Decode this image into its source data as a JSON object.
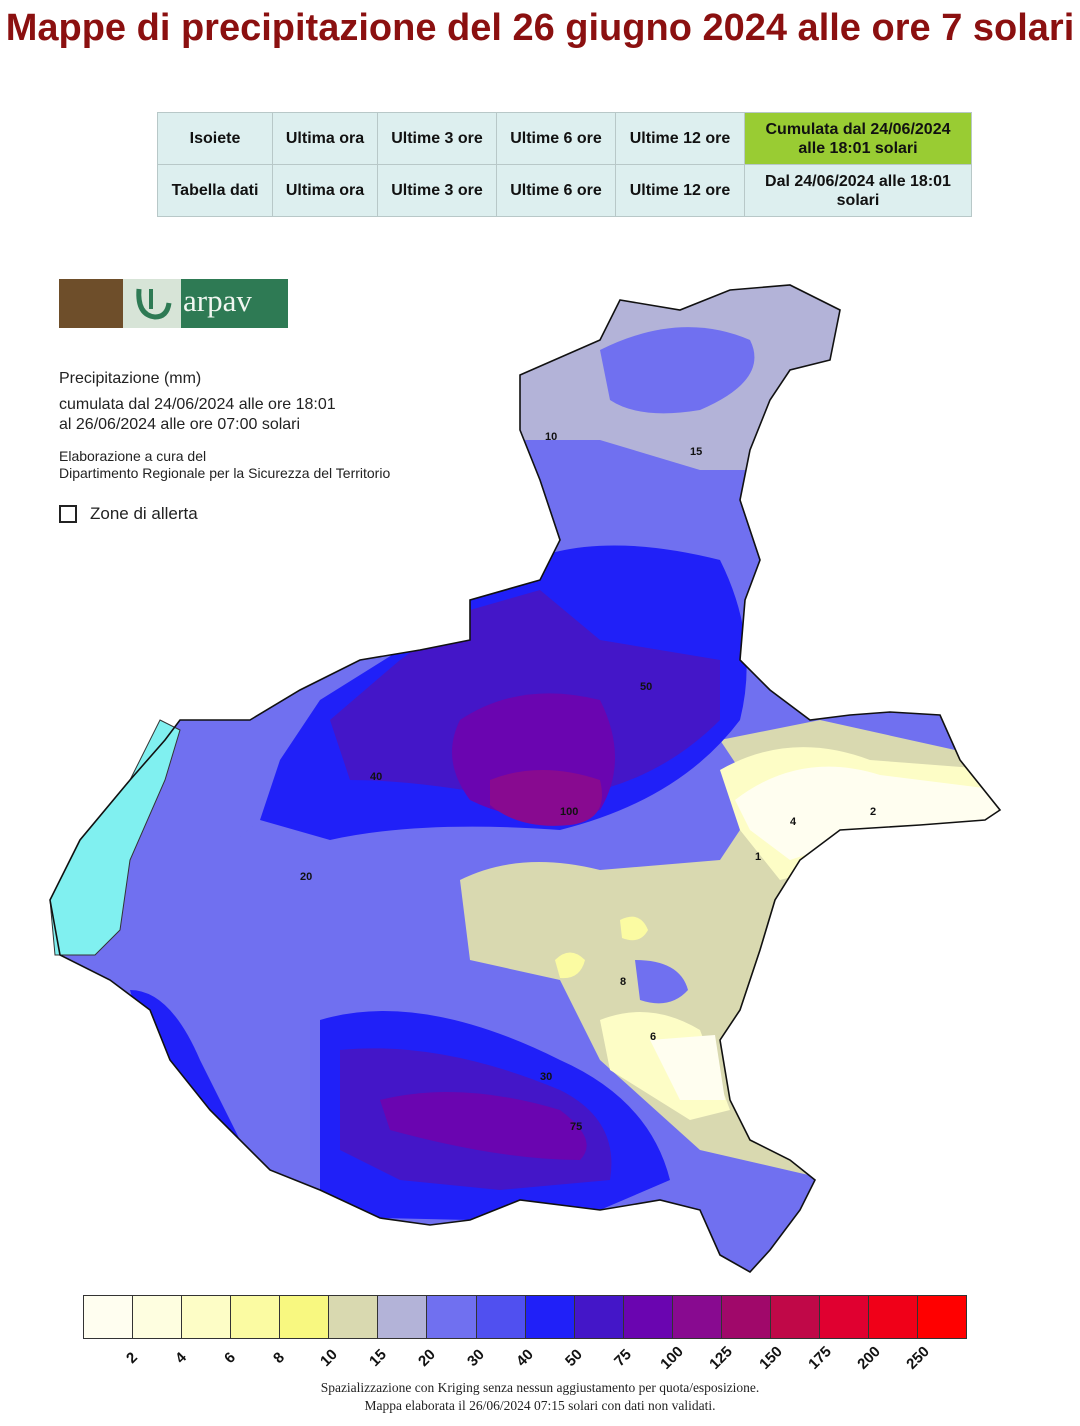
{
  "title": "Mappe di precipitazione del 26 giugno 2024 alle ore 7 solari",
  "nav": {
    "rows": [
      {
        "header": "Isoiete",
        "cells": [
          {
            "label": "Ultima ora"
          },
          {
            "label": "Ultime 3 ore"
          },
          {
            "label": "Ultime 6 ore"
          },
          {
            "label": "Ultime 12 ore"
          },
          {
            "label": "Cumulata dal 24/06/2024 alle 18:01 solari",
            "selected": true
          }
        ]
      },
      {
        "header": "Tabella dati",
        "cells": [
          {
            "label": "Ultima ora"
          },
          {
            "label": "Ultime 3 ore"
          },
          {
            "label": "Ultime 6 ore"
          },
          {
            "label": "Ultime 12 ore"
          },
          {
            "label": "Dal 24/06/2024 alle 18:01 solari"
          }
        ]
      }
    ],
    "selected_color": "#99cc33",
    "cell_color": "#ddefef"
  },
  "logo": {
    "text": "arpav"
  },
  "legend": {
    "title": "Precipitazione (mm)",
    "period_line1": "cumulata dal 24/06/2024 alle ore 18:01",
    "period_line2": "al 26/06/2024 alle ore 07:00 solari",
    "credit_line1": "Elaborazione a cura del",
    "credit_line2": "Dipartimento Regionale per la Sicurezza del Territorio",
    "alert_zones_label": "Zone di allerta",
    "alert_zones_checked": false
  },
  "scale": {
    "colors": [
      "#fffef0",
      "#fefee0",
      "#fdfdc6",
      "#fbfba2",
      "#f8f880",
      "#d9d9b0",
      "#b3b3d8",
      "#7070f0",
      "#5050f0",
      "#2020f8",
      "#4416c8",
      "#6a05b0",
      "#880a90",
      "#a0086a",
      "#c00848",
      "#e00030",
      "#f00018",
      "#ff0000"
    ],
    "ticks": [
      "2",
      "4",
      "6",
      "8",
      "10",
      "15",
      "20",
      "30",
      "40",
      "50",
      "75",
      "100",
      "125",
      "150",
      "175",
      "200",
      "250"
    ]
  },
  "contour_labels": [
    "100",
    "75",
    "50",
    "40",
    "30",
    "20",
    "15",
    "10",
    "8",
    "6",
    "4",
    "2",
    "1"
  ],
  "footer": {
    "line1": "Spazializzazione con Kriging senza nessun aggiustamento per quota/esposizione.",
    "line2": "Mappa elaborata il 26/06/2024 07:15 solari con dati non validati."
  }
}
